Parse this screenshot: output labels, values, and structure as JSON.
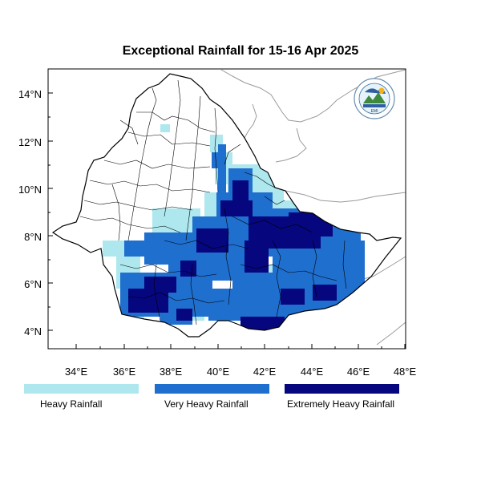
{
  "title": "Exceptional Rainfall for 15-16 Apr 2025",
  "x_ticks": [
    "34°E",
    "36°E",
    "38°E",
    "40°E",
    "42°E",
    "44°E",
    "46°E",
    "48°E"
  ],
  "y_ticks": [
    "14°N",
    "12°N",
    "10°N",
    "8°N",
    "6°N",
    "4°N"
  ],
  "legend": [
    {
      "label": "Heavy Rainfall",
      "color": "#aee8ee"
    },
    {
      "label": "Very Heavy Rainfall",
      "color": "#1f6fcf"
    },
    {
      "label": "Extremely Heavy Rainfall",
      "color": "#06067f"
    }
  ],
  "logo_text": "EMI",
  "colors": {
    "heavy": "#aee8ee",
    "very_heavy": "#1f6fcf",
    "extreme": "#06067f",
    "country_border": "#000000",
    "neighbor_border": "#9a9a9a"
  }
}
